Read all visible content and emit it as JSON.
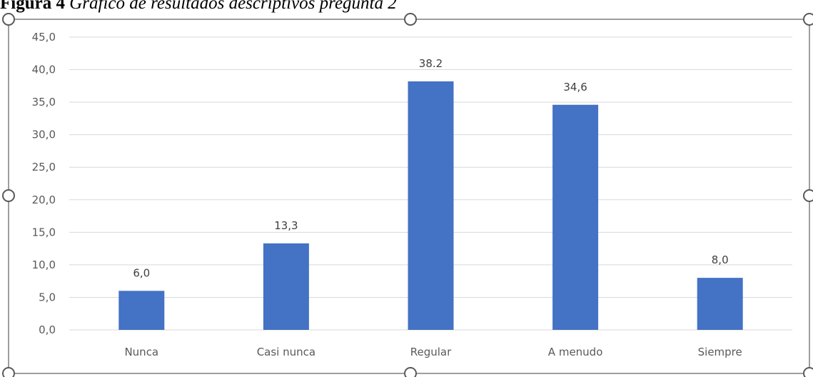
{
  "caption": {
    "prefix": "Figura 4",
    "text": "Gráfico de resultados descriptivos pregunta 2"
  },
  "chart_data": {
    "type": "bar",
    "categories": [
      "Nunca",
      "Casi nunca",
      "Regular",
      "A menudo",
      "Siempre"
    ],
    "values": [
      6.0,
      13.3,
      38.2,
      34.6,
      8.0
    ],
    "data_labels": [
      "6,0",
      "13,3",
      "38.2",
      "34,6",
      "8,0"
    ],
    "yticks": [
      "0,0",
      "5,0",
      "10,0",
      "15,0",
      "20,0",
      "25,0",
      "30,0",
      "35,0",
      "40,0",
      "45,0"
    ],
    "ylim": [
      0,
      45
    ],
    "title": "",
    "xlabel": "",
    "ylabel": "",
    "grid": true,
    "legend": "none",
    "colors": {
      "bar": "#4472C4",
      "grid": "#D9D9D9",
      "frame": "#7F7F7F"
    }
  }
}
